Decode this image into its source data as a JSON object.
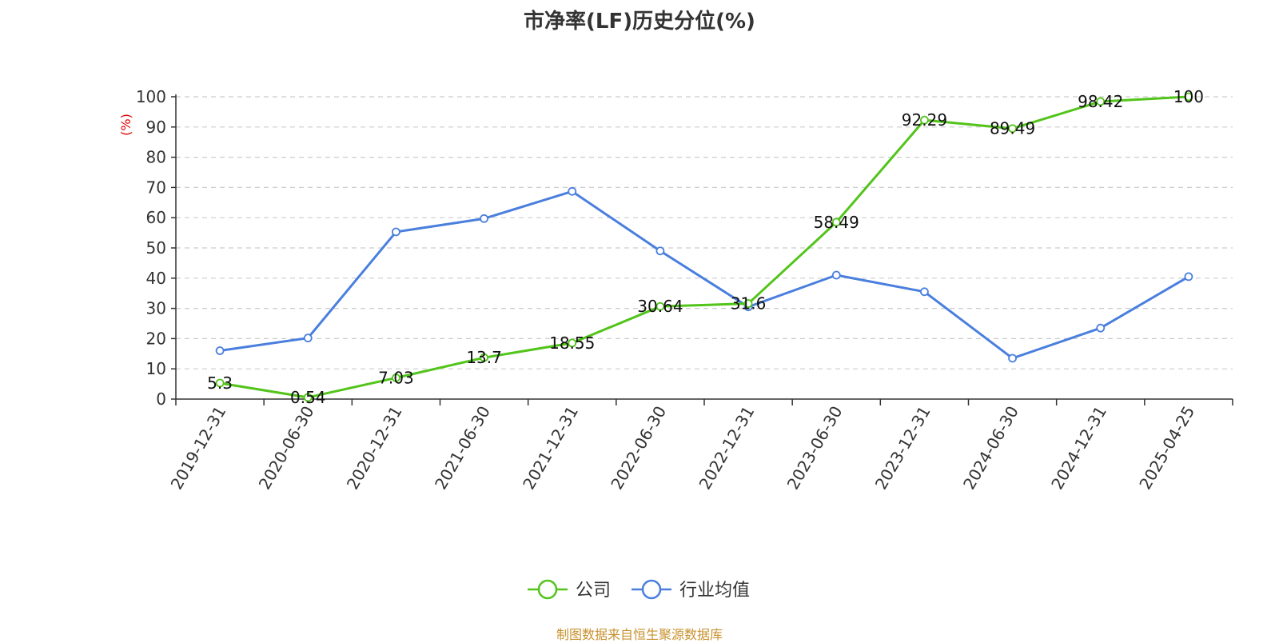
{
  "title": "市净率(LF)历史分位(%)",
  "source_note": "制图数据来自恒生聚源数据库",
  "colors": {
    "company": "#52c41a",
    "industry": "#4a7fde",
    "axis": "#333333",
    "grid": "#cccccc",
    "unit": "#e00000",
    "source": "#c8922f"
  },
  "chart_data": {
    "type": "line",
    "title": "市净率(LF)历史分位(%)",
    "ylabel": "(%)",
    "xlabel": "",
    "ylim": [
      0,
      100
    ],
    "yticks": [
      0,
      10,
      20,
      30,
      40,
      50,
      60,
      70,
      80,
      90,
      100
    ],
    "grid": "horizontal-dashed",
    "legend_position": "bottom",
    "categories": [
      "2019-12-31",
      "2020-06-30",
      "2020-12-31",
      "2021-06-30",
      "2021-12-31",
      "2022-06-30",
      "2022-12-31",
      "2023-06-30",
      "2023-12-31",
      "2024-06-30",
      "2024-12-31",
      "2025-04-25"
    ],
    "series": [
      {
        "name": "公司",
        "color": "#52c41a",
        "values": [
          5.3,
          0.54,
          7.03,
          13.7,
          18.55,
          30.64,
          31.6,
          58.49,
          92.29,
          89.49,
          98.42,
          100
        ],
        "labels": [
          "5.3",
          "0.54",
          "7.03",
          "13.7",
          "18.55",
          "30.64",
          "31.6",
          "58.49",
          "92.29",
          "89.49",
          "98.42",
          "100"
        ]
      },
      {
        "name": "行业均值",
        "color": "#4a7fde",
        "values": [
          16,
          20.2,
          55.3,
          59.7,
          68.7,
          49,
          30.5,
          41,
          35.5,
          13.5,
          23.5,
          40.5
        ]
      }
    ]
  }
}
